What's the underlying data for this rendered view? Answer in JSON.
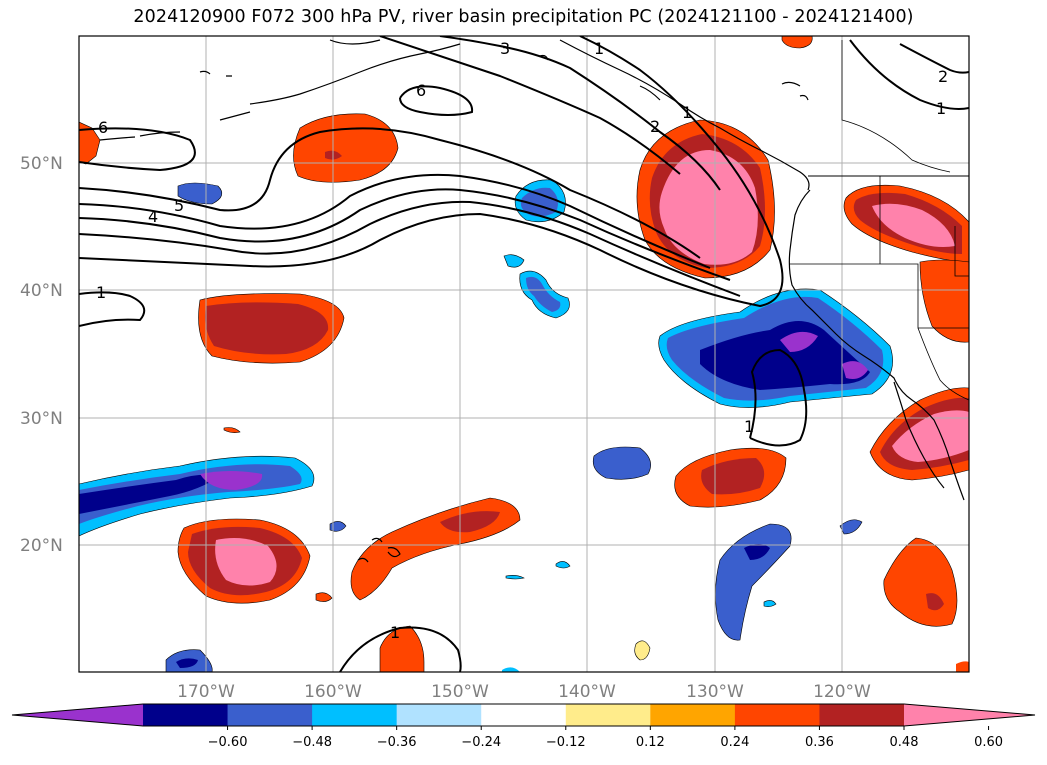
{
  "title": "2024120900 F072 300 hPa PV, river basin precipitation PC (2024121100 - 2024121400)",
  "map": {
    "latitude_labels": [
      "50°N",
      "40°N",
      "30°N",
      "20°N"
    ],
    "longitude_labels": [
      "170°W",
      "160°W",
      "150°W",
      "140°W",
      "130°W",
      "120°W"
    ],
    "grid": true,
    "pv_contour_labels": [
      "6",
      "6",
      "5",
      "4",
      "3",
      "2",
      "2",
      "1",
      "1",
      "1",
      "1",
      "1",
      "1"
    ]
  },
  "colorbar": {
    "tick_labels": [
      "−0.60",
      "−0.48",
      "−0.36",
      "−0.24",
      "−0.12",
      "0.12",
      "0.24",
      "0.36",
      "0.48",
      "0.60"
    ],
    "colors": [
      "#9a32cd",
      "#00008b",
      "#3a5fcd",
      "#00bfff",
      "#b0e2ff",
      "#ffffff",
      "#ffec8b",
      "#ffa500",
      "#ff4500",
      "#b22222",
      "#ff82ab"
    ]
  }
}
